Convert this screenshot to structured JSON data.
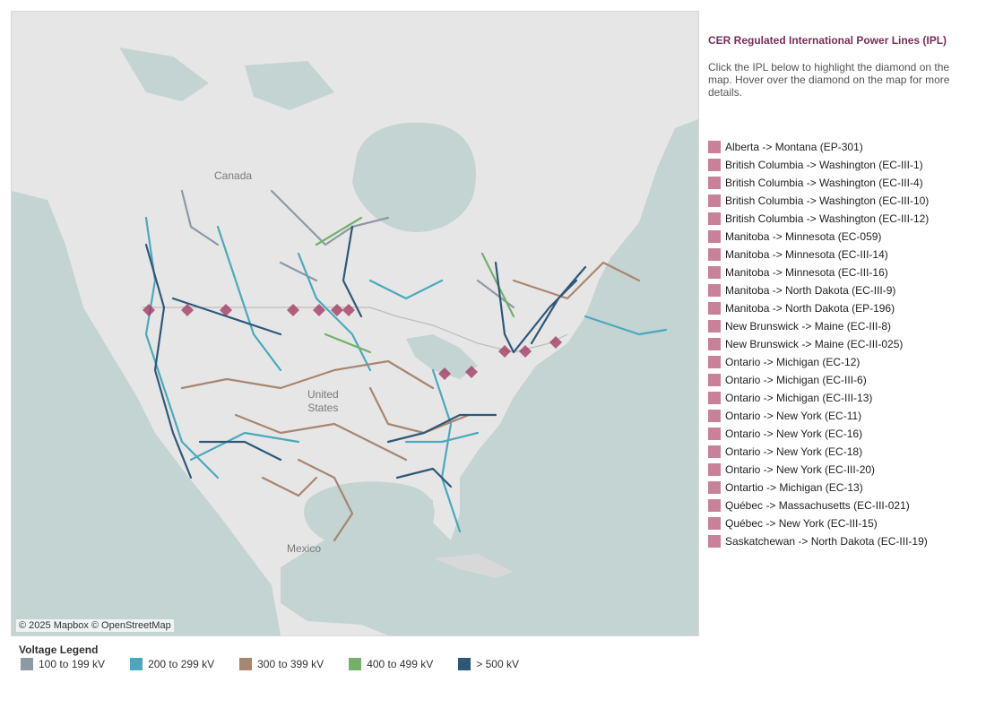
{
  "map": {
    "attribution": "© 2025 Mapbox © OpenStreetMap",
    "labels": {
      "canada": "Canada",
      "united_states": "United\nStates",
      "mexico": "Mexico"
    }
  },
  "panel": {
    "title": "CER Regulated International Power Lines (IPL)",
    "description": "Click the IPL below to highlight the diamond on the map. Hover over the diamond on the map for more details.",
    "swatch_color": "#c88199",
    "items": [
      "Alberta -> Montana (EP-301)",
      "British Columbia -> Washington (EC-III-1)",
      "British Columbia -> Washington (EC-III-4)",
      "British Columbia -> Washington (EC-III-10)",
      "British Columbia -> Washington (EC-III-12)",
      "Manitoba -> Minnesota (EC-059)",
      "Manitoba -> Minnesota (EC-III-14)",
      "Manitoba -> Minnesota (EC-III-16)",
      "Manitoba -> North Dakota (EC-III-9)",
      "Manitoba -> North Dakota (EP-196)",
      "New Brunswick -> Maine (EC-III-8)",
      "New Brunswick -> Maine (EC-III-025)",
      "Ontario -> Michigan (EC-12)",
      "Ontario -> Michigan (EC-III-6)",
      "Ontario -> Michigan (EC-III-13)",
      "Ontario -> New York (EC-11)",
      "Ontario -> New York (EC-16)",
      "Ontario -> New York (EC-18)",
      "Ontario -> New York (EC-III-20)",
      "Ontartio -> Michigan (EC-13)",
      "Québec -> Massachusetts (EC-III-021)",
      "Québec -> New York (EC-III-15)",
      "Saskatchewan -> North Dakota (EC-III-19)"
    ]
  },
  "legend": {
    "title": "Voltage Legend",
    "items": [
      {
        "label": "100 to 199 kV",
        "color": "#8e99a6"
      },
      {
        "label": "200 to 299 kV",
        "color": "#4aa9bd"
      },
      {
        "label": "300 to 399 kV",
        "color": "#a88670"
      },
      {
        "label": "400 to 499 kV",
        "color": "#74b06a"
      },
      {
        "label": "> 500 kV",
        "color": "#2f5878"
      }
    ]
  }
}
